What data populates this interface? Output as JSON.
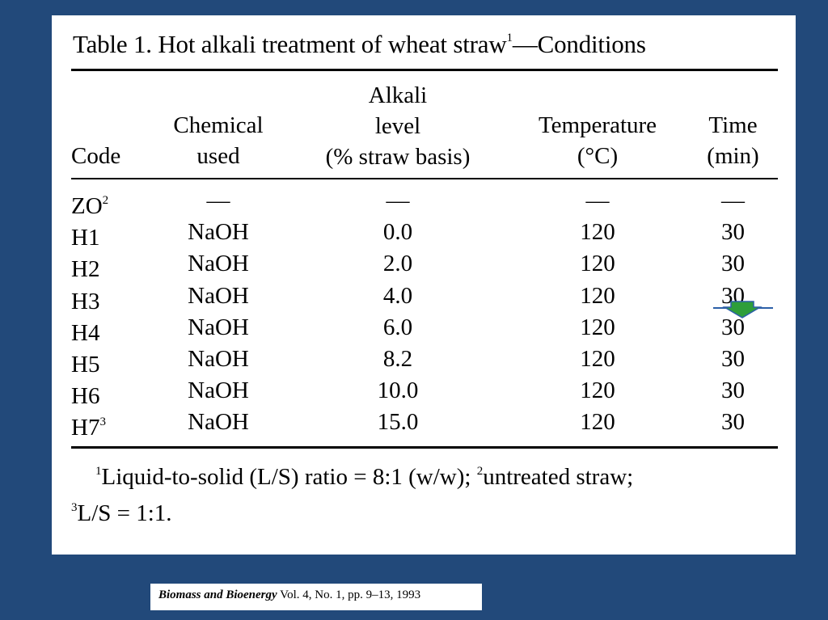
{
  "table": {
    "title_prefix": "Table 1. Hot alkali treatment of wheat straw",
    "title_sup": "1",
    "title_suffix": "—Conditions",
    "headers": {
      "code": "Code",
      "chem_line1": "Chemical",
      "chem_line2": "used",
      "alk_line1": "Alkali",
      "alk_line2": "level",
      "alk_line3": "(% straw basis)",
      "temp_line1": "Temperature",
      "temp_line2": "(°C)",
      "time_line1": "Time",
      "time_line2": "(min)"
    },
    "rows": [
      {
        "code": "ZO",
        "sup": "2",
        "chemical": "—",
        "alkali": "—",
        "temp": "—",
        "time": "—"
      },
      {
        "code": "H1",
        "sup": "",
        "chemical": "NaOH",
        "alkali": "0.0",
        "temp": "120",
        "time": "30"
      },
      {
        "code": "H2",
        "sup": "",
        "chemical": "NaOH",
        "alkali": "2.0",
        "temp": "120",
        "time": "30"
      },
      {
        "code": "H3",
        "sup": "",
        "chemical": "NaOH",
        "alkali": "4.0",
        "temp": "120",
        "time": "30"
      },
      {
        "code": "H4",
        "sup": "",
        "chemical": "NaOH",
        "alkali": "6.0",
        "temp": "120",
        "time": "30"
      },
      {
        "code": "H5",
        "sup": "",
        "chemical": "NaOH",
        "alkali": "8.2",
        "temp": "120",
        "time": "30"
      },
      {
        "code": "H6",
        "sup": "",
        "chemical": "NaOH",
        "alkali": "10.0",
        "temp": "120",
        "time": "30"
      },
      {
        "code": "H7",
        "sup": "3",
        "chemical": "NaOH",
        "alkali": "15.0",
        "temp": "120",
        "time": "30"
      }
    ],
    "footnote": {
      "sup1": "1",
      "text1": "Liquid-to-solid (L/S) ratio = 8:1 (w/w); ",
      "sup2": "2",
      "text2": "untreated straw;",
      "sup3": "3",
      "text3": "L/S = 1:1."
    }
  },
  "annotation": {
    "icon": "down-arrow-icon",
    "fill": "#2e9e3a",
    "outline": "#2c5fa8"
  },
  "citation": {
    "journal": "Biomass and Bioenergy",
    "details": " Vol. 4, No. 1, pp. 9–13, 1993"
  },
  "colors": {
    "background": "#22497a",
    "panel": "#ffffff",
    "text": "#000000"
  }
}
